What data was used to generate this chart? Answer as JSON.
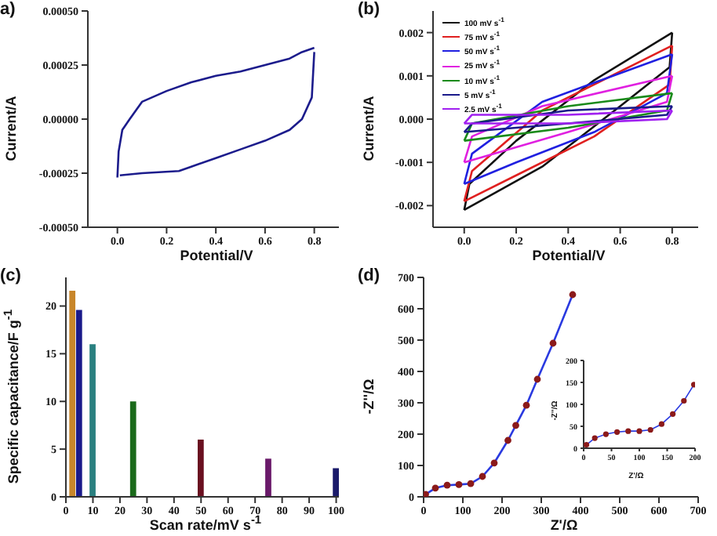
{
  "chart_data": [
    {
      "type": "line",
      "title": "a)",
      "xlabel": "Potential/V",
      "ylabel": "Current/A",
      "xlim": [
        -0.12,
        0.9
      ],
      "ylim": [
        -0.0005,
        0.0005
      ],
      "xticks": [
        {
          "value": 0,
          "label": "0.0"
        },
        {
          "value": 0.2,
          "label": "0.2"
        },
        {
          "value": 0.4,
          "label": "0.4"
        },
        {
          "value": 0.6,
          "label": "0.6"
        },
        {
          "value": 0.8,
          "label": "0.8"
        }
      ],
      "yticks": [
        {
          "value": -0.0005,
          "label": "-0.00050"
        },
        {
          "value": -0.00025,
          "label": "-0.00025"
        },
        {
          "value": 0,
          "label": "0.00000"
        },
        {
          "value": 0.00025,
          "label": "0.00025"
        },
        {
          "value": 0.0005,
          "label": "0.00050"
        }
      ],
      "marker": "none",
      "line_style": "solid",
      "series": [
        {
          "color": "#1c1c8c",
          "x": [
            0,
            0.005,
            0.02,
            0.05,
            0.1,
            0.2,
            0.3,
            0.4,
            0.5,
            0.6,
            0.7,
            0.75,
            0.8
          ],
          "values": [
            -0.00027,
            -0.00015,
            -5e-05,
            0,
            8e-05,
            0.00013,
            0.00017,
            0.0002,
            0.00022,
            0.00025,
            0.00028,
            0.00031,
            0.00033
          ]
        },
        {
          "color": "#1c1c8c",
          "x": [
            0.01,
            0.1,
            0.25,
            0.3,
            0.4,
            0.5,
            0.6,
            0.7,
            0.75,
            0.79,
            0.8
          ],
          "values": [
            -0.00026,
            -0.00025,
            -0.00024,
            -0.00022,
            -0.00018,
            -0.00014,
            -0.0001,
            -5e-05,
            0,
            0.0001,
            0.00031
          ]
        }
      ]
    },
    {
      "type": "line",
      "title": "(b)",
      "xlabel": "Potential/V",
      "ylabel": "Current/A",
      "xlim": [
        -0.12,
        0.9
      ],
      "ylim": [
        -0.0025,
        0.0025
      ],
      "xticks": [
        {
          "value": 0,
          "label": "0.0"
        },
        {
          "value": 0.2,
          "label": "0.2"
        },
        {
          "value": 0.4,
          "label": "0.4"
        },
        {
          "value": 0.6,
          "label": "0.6"
        },
        {
          "value": 0.8,
          "label": "0.8"
        }
      ],
      "yticks": [
        {
          "value": -0.002,
          "label": "-0.002"
        },
        {
          "value": -0.001,
          "label": "-0.001"
        },
        {
          "value": 0,
          "label": "0.000"
        },
        {
          "value": 0.001,
          "label": "0.001"
        },
        {
          "value": 0.002,
          "label": "0.002"
        }
      ],
      "marker": "none",
      "line_style": "solid",
      "legend": "top left",
      "series": [
        {
          "name": "100 mV s$^{-1}$",
          "color": "#111111",
          "x": [
            0,
            0.02,
            0.2,
            0.5,
            0.8
          ],
          "values": [
            -0.0021,
            -0.0015,
            -0.0005,
            0.0009,
            0.002
          ]
        },
        {
          "color": "#111111",
          "x": [
            0,
            0.3,
            0.6,
            0.79,
            0.8
          ],
          "values": [
            -0.0021,
            -0.0011,
            0.0003,
            0.0012,
            0.002
          ]
        },
        {
          "name": "75  mV s$^{-1}$",
          "color": "#e02020",
          "x": [
            0,
            0.03,
            0.3,
            0.8
          ],
          "values": [
            -0.0019,
            -0.0012,
            0.0002,
            0.0017
          ]
        },
        {
          "color": "#e02020",
          "x": [
            0,
            0.2,
            0.5,
            0.79,
            0.8
          ],
          "values": [
            -0.0019,
            -0.0013,
            -0.0004,
            0.0008,
            0.0017
          ]
        },
        {
          "name": "50  mV s$^{-1}$",
          "color": "#2020e0",
          "x": [
            0,
            0.03,
            0.3,
            0.8
          ],
          "values": [
            -0.0015,
            -0.0008,
            0.0004,
            0.0015
          ]
        },
        {
          "color": "#2020e0",
          "x": [
            0,
            0.2,
            0.5,
            0.78,
            0.8
          ],
          "values": [
            -0.0015,
            -0.001,
            -0.0003,
            0.0006,
            0.0015
          ]
        },
        {
          "name": "25  mV s$^{-1}$",
          "color": "#e020e0",
          "x": [
            0,
            0.03,
            0.3,
            0.8
          ],
          "values": [
            -0.001,
            -0.0004,
            0.0003,
            0.001
          ]
        },
        {
          "color": "#e020e0",
          "x": [
            0,
            0.4,
            0.78,
            0.8
          ],
          "values": [
            -0.001,
            -0.0003,
            0.0004,
            0.001
          ]
        },
        {
          "name": "10 mV s$^{-1}$",
          "color": "#1a8a1a",
          "x": [
            0,
            0.03,
            0.4,
            0.8
          ],
          "values": [
            -0.0005,
            -0.0001,
            0.0003,
            0.0006
          ]
        },
        {
          "color": "#1a8a1a",
          "x": [
            0,
            0.4,
            0.78,
            0.8
          ],
          "values": [
            -0.0005,
            -0.0002,
            0.0002,
            0.0006
          ]
        },
        {
          "name": "5   mV s$^{-1}$",
          "color": "#1a1a8a",
          "x": [
            0,
            0.03,
            0.4,
            0.8
          ],
          "values": [
            -0.0003,
            -0.0001,
            0.0002,
            0.0003
          ]
        },
        {
          "color": "#1a1a8a",
          "x": [
            0,
            0.4,
            0.78,
            0.8
          ],
          "values": [
            -0.0003,
            -0.0001,
            0.0001,
            0.0003
          ]
        },
        {
          "name": "2.5 mV s$^{-1}$",
          "color": "#a020f0",
          "x": [
            0,
            0.03,
            0.4,
            0.8
          ],
          "values": [
            -0.0001,
            0.0001,
            0.0001,
            0.0002
          ]
        },
        {
          "color": "#a020f0",
          "x": [
            0,
            0.4,
            0.78,
            0.8
          ],
          "values": [
            -0.0001,
            -0.0001,
            0,
            0.0002
          ]
        }
      ]
    },
    {
      "type": "bar",
      "title": "(c)",
      "xlabel": "Scan rate/mV s$^{-1}$",
      "ylabel": "Specific capacitance/F g$^{-1}$",
      "xlim": [
        0,
        101
      ],
      "ylim": [
        0,
        23
      ],
      "xticks": [
        0,
        10,
        20,
        30,
        40,
        50,
        60,
        70,
        80,
        90,
        100
      ],
      "yticks": [
        0,
        5,
        10,
        15,
        20
      ],
      "x": [
        2.5,
        5,
        10,
        25,
        50,
        75,
        100
      ],
      "values": [
        21.6,
        19.6,
        16,
        10,
        6,
        4,
        3
      ],
      "colors": [
        "#c8862a",
        "#1a1a8a",
        "#2a8080",
        "#1a6a1a",
        "#6a1020",
        "#6a1a6a",
        "#1a1a6a"
      ]
    },
    {
      "type": "scatter",
      "title": "(d)",
      "xlabel": "Z'/Ω",
      "ylabel": "-Z''/Ω",
      "xlim": [
        0,
        700
      ],
      "ylim": [
        0,
        700
      ],
      "xticks": [
        0,
        100,
        200,
        300,
        400,
        500,
        600,
        700
      ],
      "yticks": [
        0,
        100,
        200,
        300,
        400,
        500,
        600,
        700
      ],
      "series": [
        {
          "type": "line",
          "color": "#2a3ae0",
          "marker": "none",
          "x": [
            5,
            30,
            60,
            90,
            120,
            150,
            180,
            215,
            235,
            262,
            290,
            330,
            380
          ],
          "values": [
            8,
            28,
            37,
            39,
            42,
            65,
            108,
            180,
            228,
            292,
            375,
            490,
            645
          ]
        },
        {
          "color": "#8b1a1a",
          "marker": "circle",
          "x": [
            5,
            30,
            60,
            90,
            120,
            150,
            180,
            215,
            235,
            262,
            290,
            330,
            380
          ],
          "values": [
            8,
            28,
            37,
            39,
            42,
            65,
            108,
            180,
            228,
            292,
            375,
            490,
            645
          ]
        }
      ]
    },
    {
      "type": "scatter",
      "xlabel": "Z'/Ω",
      "ylabel": "-Z''/Ω",
      "xlim": [
        0,
        200
      ],
      "ylim": [
        0,
        200
      ],
      "xticks": [
        0,
        50,
        100,
        150,
        200
      ],
      "yticks": [
        0,
        50,
        100,
        150,
        200
      ],
      "series": [
        {
          "type": "line",
          "color": "#2a3ae0",
          "marker": "none",
          "x": [
            5,
            20,
            40,
            60,
            80,
            100,
            120,
            140,
            160,
            180,
            198
          ],
          "values": [
            8,
            23,
            32,
            37,
            39,
            39,
            42,
            55,
            78,
            108,
            145
          ]
        },
        {
          "color": "#8b1a1a",
          "marker": "circle",
          "x": [
            5,
            20,
            40,
            60,
            80,
            100,
            120,
            140,
            160,
            180,
            198
          ],
          "values": [
            8,
            23,
            32,
            37,
            39,
            39,
            42,
            55,
            78,
            108,
            145
          ]
        }
      ]
    }
  ]
}
